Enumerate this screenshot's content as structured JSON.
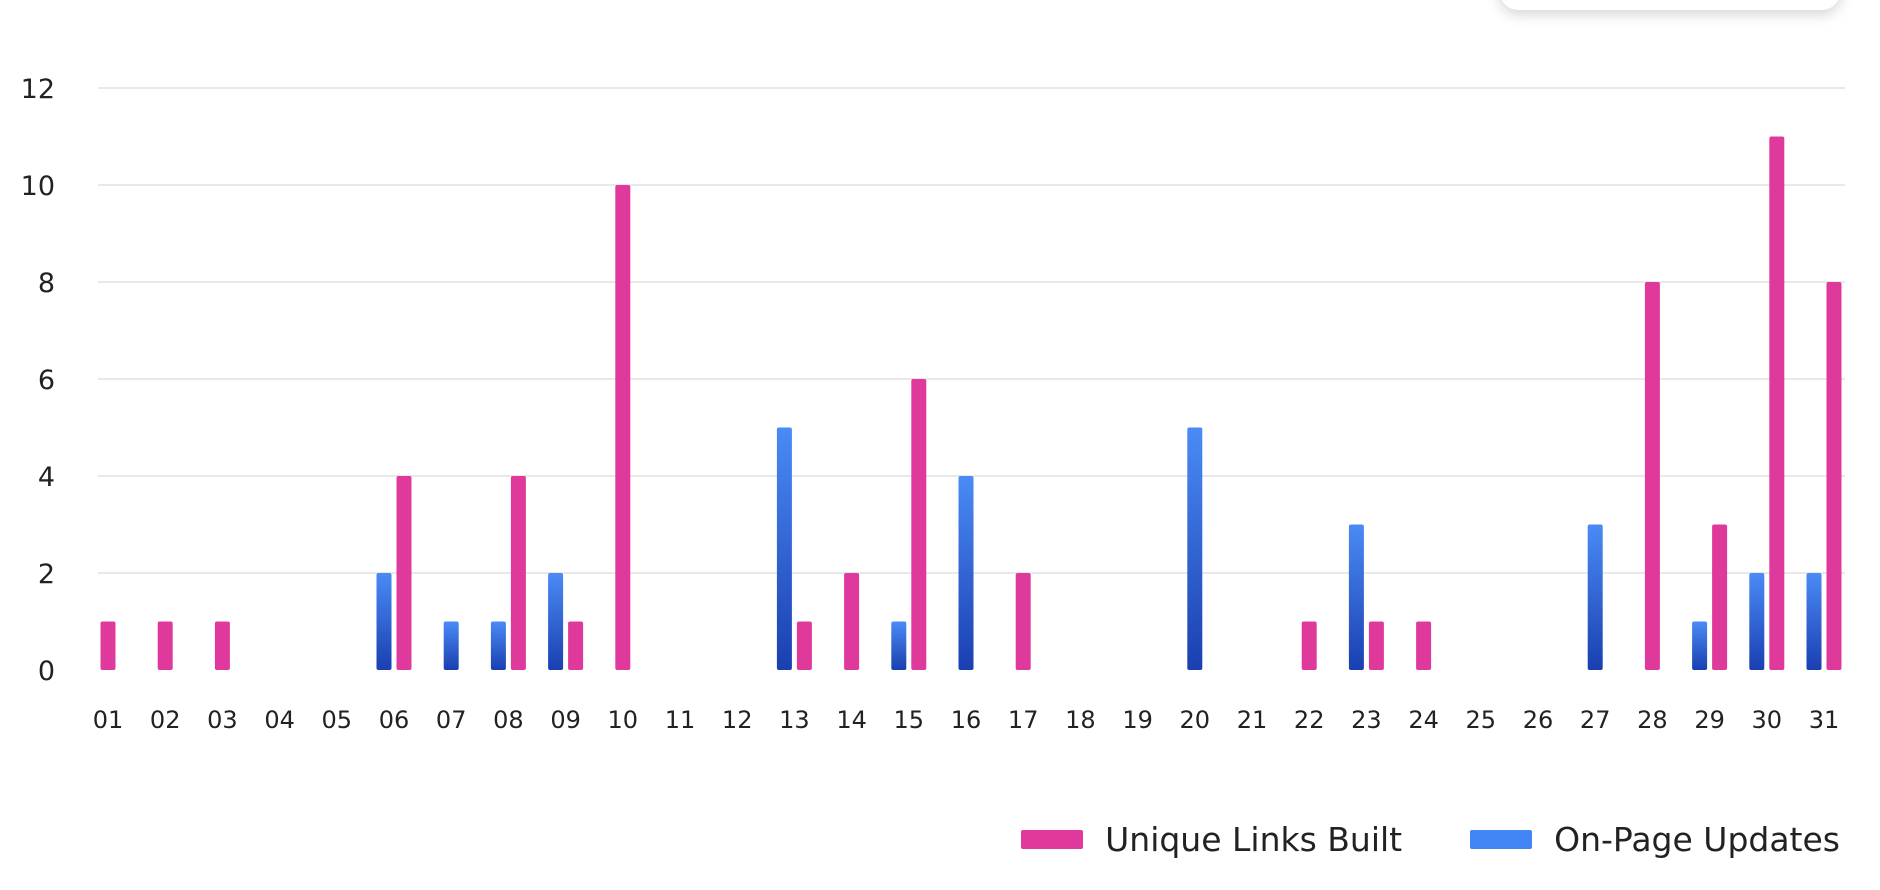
{
  "chart_data": {
    "type": "bar",
    "categories": [
      "01",
      "02",
      "03",
      "04",
      "05",
      "06",
      "07",
      "08",
      "09",
      "10",
      "11",
      "12",
      "13",
      "14",
      "15",
      "16",
      "17",
      "18",
      "19",
      "20",
      "21",
      "22",
      "23",
      "24",
      "25",
      "26",
      "27",
      "28",
      "29",
      "30",
      "31"
    ],
    "series": [
      {
        "name": "On-Page Updates",
        "color": "#4285f4",
        "values": [
          0,
          0,
          0,
          0,
          0,
          2,
          1,
          1,
          2,
          0,
          0,
          0,
          5,
          0,
          1,
          4,
          0,
          0,
          0,
          5,
          0,
          0,
          3,
          0,
          0,
          0,
          3,
          0,
          1,
          2,
          2
        ]
      },
      {
        "name": "Unique Links Built",
        "color": "#e0399c",
        "values": [
          1,
          1,
          1,
          0,
          0,
          4,
          0,
          4,
          1,
          10,
          0,
          0,
          1,
          2,
          6,
          0,
          2,
          0,
          0,
          0,
          0,
          1,
          1,
          1,
          0,
          0,
          0,
          8,
          3,
          11,
          8
        ]
      }
    ],
    "yticks": [
      0,
      2,
      4,
      6,
      8,
      10,
      12
    ],
    "ylim": [
      0,
      12
    ],
    "grid": true,
    "legend": "bottom-right",
    "legend_order": [
      "Unique Links Built",
      "On-Page Updates"
    ],
    "colors": {
      "links": "#e0399c",
      "updates_top": "#4a8bf5",
      "updates_bottom": "#1a3fb0",
      "grid": "#e2e2e2"
    }
  }
}
